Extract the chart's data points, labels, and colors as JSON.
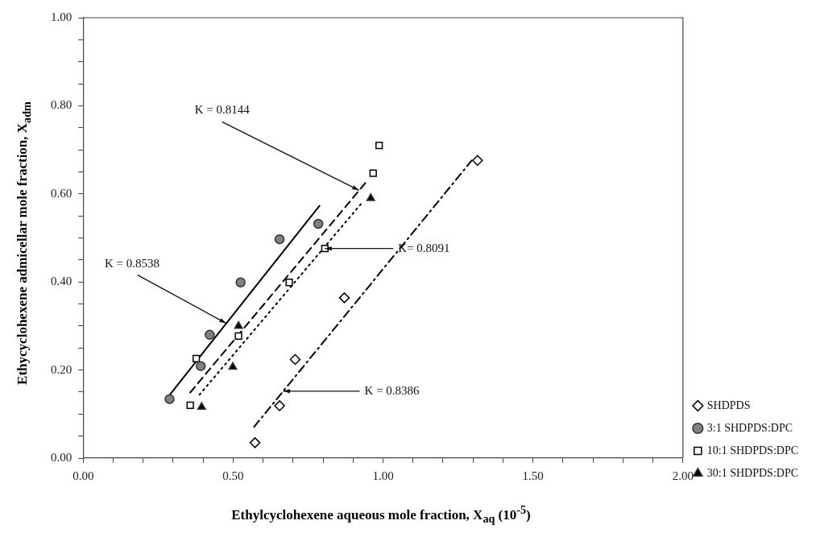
{
  "chart_data": {
    "type": "scatter",
    "xlabel": "Ethylcyclohexene aqueous mole fraction, X$_{aq}$ (10$^{-5}$)",
    "ylabel": "Ethycyclohexene admicellar mole fraction, X$_{adm}$",
    "xlim": [
      0,
      2
    ],
    "ylim": [
      0,
      1
    ],
    "xticks": [
      {
        "value": 0,
        "label": "0.00"
      },
      {
        "value": 0.1,
        "label": null
      },
      {
        "value": 0.2,
        "label": null
      },
      {
        "value": 0.3,
        "label": null
      },
      {
        "value": 0.4,
        "label": null
      },
      {
        "value": 0.5,
        "label": "0.50"
      },
      {
        "value": 0.6,
        "label": null
      },
      {
        "value": 0.7,
        "label": null
      },
      {
        "value": 0.8,
        "label": null
      },
      {
        "value": 0.9,
        "label": null
      },
      {
        "value": 1,
        "label": "1.00"
      },
      {
        "value": 1.1,
        "label": null
      },
      {
        "value": 1.2,
        "label": null
      },
      {
        "value": 1.3,
        "label": null
      },
      {
        "value": 1.4,
        "label": null
      },
      {
        "value": 1.5,
        "label": "1.50"
      },
      {
        "value": 1.6,
        "label": null
      },
      {
        "value": 1.7,
        "label": null
      },
      {
        "value": 1.8,
        "label": null
      },
      {
        "value": 1.9,
        "label": null
      },
      {
        "value": 2,
        "label": "2.00"
      }
    ],
    "yticks": [
      {
        "value": 0,
        "label": "0.00"
      },
      {
        "value": 0.05,
        "label": null
      },
      {
        "value": 0.1,
        "label": null
      },
      {
        "value": 0.15,
        "label": null
      },
      {
        "value": 0.2,
        "label": "0.20"
      },
      {
        "value": 0.25,
        "label": null
      },
      {
        "value": 0.3,
        "label": null
      },
      {
        "value": 0.35,
        "label": null
      },
      {
        "value": 0.4,
        "label": "0.40"
      },
      {
        "value": 0.45,
        "label": null
      },
      {
        "value": 0.5,
        "label": null
      },
      {
        "value": 0.55,
        "label": null
      },
      {
        "value": 0.6,
        "label": "0.60"
      },
      {
        "value": 0.65,
        "label": null
      },
      {
        "value": 0.7,
        "label": null
      },
      {
        "value": 0.75,
        "label": null
      },
      {
        "value": 0.8,
        "label": "0.80"
      },
      {
        "value": 0.85,
        "label": null
      },
      {
        "value": 0.9,
        "label": null
      },
      {
        "value": 0.95,
        "label": null
      },
      {
        "value": 1,
        "label": "1.00"
      }
    ],
    "grid": false,
    "legend": "right",
    "series": [
      {
        "name": "SHDPDS",
        "color": "#000000",
        "marker": "diamond",
        "x": [
          0.573,
          0.655,
          0.707,
          0.871,
          1.315
        ],
        "values": [
          0.035,
          0.119,
          0.224,
          0.364,
          0.676
        ]
      },
      {
        "name": "3:1 SHDPDS:DPC",
        "color": "#808080",
        "marker": "circle",
        "x": [
          0.288,
          0.392,
          0.422,
          0.525,
          0.655,
          0.784
        ],
        "values": [
          0.134,
          0.209,
          0.28,
          0.399,
          0.497,
          0.532
        ]
      },
      {
        "name": "10:1 SHDPDS:DPC",
        "color": "#000000",
        "marker": "square",
        "x": [
          0.357,
          0.377,
          0.518,
          0.687,
          0.806,
          0.967,
          0.987
        ],
        "values": [
          0.12,
          0.226,
          0.277,
          0.399,
          0.476,
          0.647,
          0.71
        ]
      },
      {
        "name": "30:1 SHDPDS:DPC",
        "color": "#000000",
        "marker": "triangle",
        "x": [
          0.395,
          0.499,
          0.518,
          0.959
        ],
        "values": [
          0.116,
          0.207,
          0.3,
          0.59
        ]
      },
      {
        "type": "line",
        "color": "#000000",
        "marker": "none",
        "line_style": "solid",
        "x": [
          0.282,
          0.788
        ],
        "values": [
          0.138,
          0.573
        ]
      },
      {
        "type": "line",
        "color": "#000000",
        "marker": "none",
        "line_style": "dashed",
        "x": [
          0.357,
          0.945
        ],
        "values": [
          0.149,
          0.628
        ]
      },
      {
        "type": "line",
        "color": "#000000",
        "marker": "none",
        "line_style": "dotted",
        "x": [
          0.388,
          0.93
        ],
        "values": [
          0.144,
          0.58
        ]
      },
      {
        "type": "line",
        "color": "#000000",
        "marker": "none",
        "line_style": "dashdot",
        "x": [
          0.57,
          1.296
        ],
        "values": [
          0.071,
          0.676
        ]
      }
    ],
    "annotations": [
      {
        "text": "K = 0.8538",
        "x": 0.477,
        "y": 0.306
      },
      {
        "text": "K = 0.8144",
        "x": 0.92,
        "y": 0.608
      },
      {
        "text": "K= 0.8091",
        "x": 0.806,
        "y": 0.476
      },
      {
        "text": "K = 0.8386",
        "x": 0.667,
        "y": 0.152
      }
    ]
  }
}
